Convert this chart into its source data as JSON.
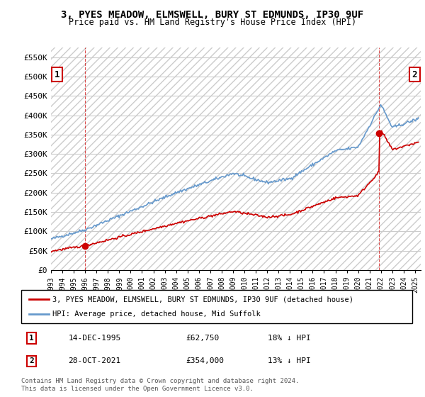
{
  "title": "3, PYES MEADOW, ELMSWELL, BURY ST EDMUNDS, IP30 9UF",
  "subtitle": "Price paid vs. HM Land Registry's House Price Index (HPI)",
  "ylabel": "",
  "ylim": [
    0,
    575000
  ],
  "yticks": [
    0,
    50000,
    100000,
    150000,
    200000,
    250000,
    300000,
    350000,
    400000,
    450000,
    500000,
    550000
  ],
  "ytick_labels": [
    "£0",
    "£50K",
    "£100K",
    "£150K",
    "£200K",
    "£250K",
    "£300K",
    "£350K",
    "£400K",
    "£450K",
    "£500K",
    "£550K"
  ],
  "hpi_color": "#6699CC",
  "price_color": "#CC0000",
  "marker_color_1": "#CC0000",
  "marker_color_2": "#CC0000",
  "annotation_box_color": "#CC0000",
  "bg_hatch_color": "#DDDDDD",
  "grid_color": "#CCCCCC",
  "purchase_1": {
    "date_num": 1995.96,
    "price": 62750,
    "label": "1"
  },
  "purchase_2": {
    "date_num": 2021.83,
    "price": 354000,
    "label": "2"
  },
  "legend_line1": "3, PYES MEADOW, ELMSWELL, BURY ST EDMUNDS, IP30 9UF (detached house)",
  "legend_line2": "HPI: Average price, detached house, Mid Suffolk",
  "footnote": "Contains HM Land Registry data © Crown copyright and database right 2024.\nThis data is licensed under the Open Government Licence v3.0.",
  "table_rows": [
    {
      "num": "1",
      "date": "14-DEC-1995",
      "price": "£62,750",
      "hpi": "18% ↓ HPI"
    },
    {
      "num": "2",
      "date": "28-OCT-2021",
      "price": "£354,000",
      "hpi": "13% ↓ HPI"
    }
  ],
  "xmin": 1993.0,
  "xmax": 2025.5
}
